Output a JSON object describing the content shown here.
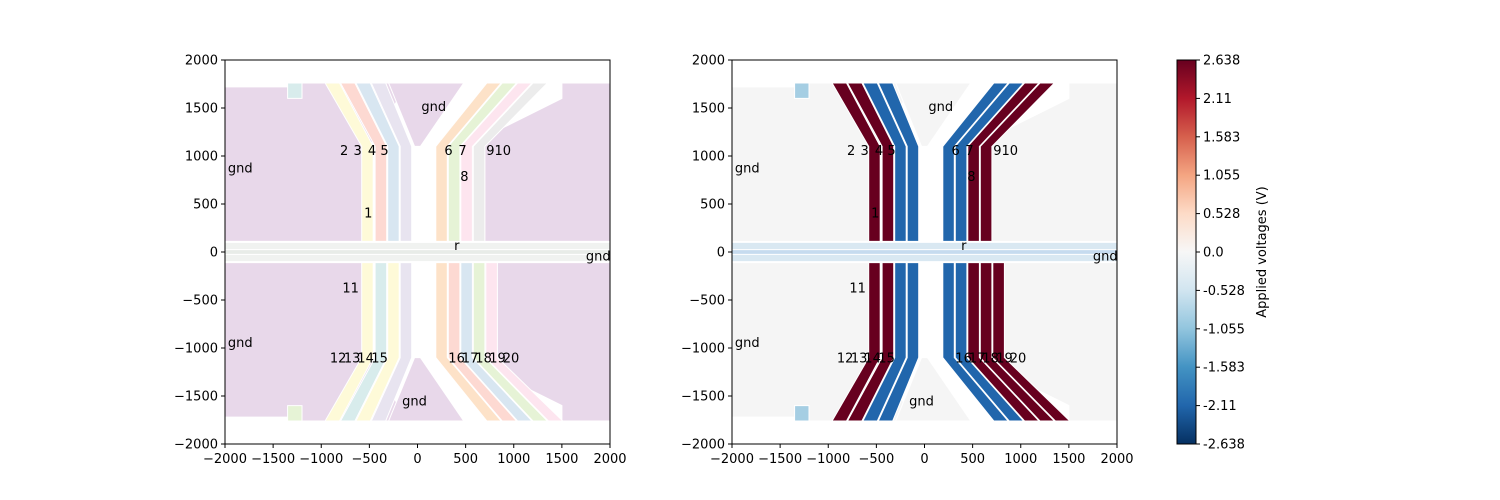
{
  "figure": {
    "panels": [
      "electrode-layout",
      "applied-voltages"
    ]
  },
  "chart_data": [
    {
      "type": "heatmap",
      "xlim": [
        -2000,
        2000
      ],
      "ylim": [
        -2000,
        2000
      ],
      "xticks": [
        -2000,
        -1500,
        -1000,
        -500,
        0,
        500,
        1000,
        1500,
        2000
      ],
      "yticks": [
        -2000,
        -1500,
        -1000,
        -500,
        0,
        500,
        1000,
        1500,
        2000
      ],
      "grid": false,
      "labels": [
        {
          "text": "gnd",
          "x": -1970,
          "y": 830
        },
        {
          "text": "gnd",
          "x": 40,
          "y": 1470
        },
        {
          "text": "gnd",
          "x": 1750,
          "y": -90
        },
        {
          "text": "gnd",
          "x": -1970,
          "y": -990
        },
        {
          "text": "gnd",
          "x": -160,
          "y": -1600
        },
        {
          "text": "1",
          "x": -555,
          "y": 360
        },
        {
          "text": "2",
          "x": -805,
          "y": 1010
        },
        {
          "text": "3",
          "x": -665,
          "y": 1010
        },
        {
          "text": "4",
          "x": -515,
          "y": 1010
        },
        {
          "text": "5",
          "x": -385,
          "y": 1010
        },
        {
          "text": "6",
          "x": 280,
          "y": 1010
        },
        {
          "text": "7",
          "x": 425,
          "y": 1010
        },
        {
          "text": "8",
          "x": 445,
          "y": 740
        },
        {
          "text": "9",
          "x": 715,
          "y": 1010
        },
        {
          "text": "10",
          "x": 800,
          "y": 1010
        },
        {
          "text": "r",
          "x": 380,
          "y": 20
        },
        {
          "text": "11",
          "x": -780,
          "y": -420
        },
        {
          "text": "12",
          "x": -910,
          "y": -1150
        },
        {
          "text": "13",
          "x": -765,
          "y": -1150
        },
        {
          "text": "14",
          "x": -625,
          "y": -1150
        },
        {
          "text": "15",
          "x": -480,
          "y": -1150
        },
        {
          "text": "16",
          "x": 320,
          "y": -1150
        },
        {
          "text": "17",
          "x": 460,
          "y": -1150
        },
        {
          "text": "18",
          "x": 600,
          "y": -1150
        },
        {
          "text": "19",
          "x": 745,
          "y": -1150
        },
        {
          "text": "20",
          "x": 885,
          "y": -1150
        }
      ]
    },
    {
      "type": "heatmap",
      "xlim": [
        -2000,
        2000
      ],
      "ylim": [
        -2000,
        2000
      ],
      "xticks": [
        -2000,
        -1500,
        -1000,
        -500,
        0,
        500,
        1000,
        1500,
        2000
      ],
      "yticks": [
        -2000,
        -1500,
        -1000,
        -500,
        0,
        500,
        1000,
        1500,
        2000
      ],
      "grid": false,
      "colorbar": {
        "label": "Applied voltages (V)",
        "range": [
          -2.638,
          2.638
        ],
        "ticks": [
          "2.638",
          "2.11",
          "1.583",
          "1.055",
          "0.528",
          "0.0",
          "-0.528",
          "-1.055",
          "-1.583",
          "-2.11",
          "-2.638"
        ],
        "colors": {
          "low": "#053061",
          "mid": "#f7f7f7",
          "high": "#67001f"
        }
      },
      "labels": [
        {
          "text": "gnd",
          "x": -1970,
          "y": 830
        },
        {
          "text": "gnd",
          "x": 40,
          "y": 1470
        },
        {
          "text": "gnd",
          "x": 1750,
          "y": -90
        },
        {
          "text": "gnd",
          "x": -1970,
          "y": -990
        },
        {
          "text": "gnd",
          "x": -160,
          "y": -1600
        },
        {
          "text": "1",
          "x": -555,
          "y": 360
        },
        {
          "text": "2",
          "x": -805,
          "y": 1010
        },
        {
          "text": "3",
          "x": -665,
          "y": 1010
        },
        {
          "text": "4",
          "x": -515,
          "y": 1010
        },
        {
          "text": "5",
          "x": -385,
          "y": 1010
        },
        {
          "text": "6",
          "x": 280,
          "y": 1010
        },
        {
          "text": "7",
          "x": 425,
          "y": 1010
        },
        {
          "text": "8",
          "x": 445,
          "y": 740
        },
        {
          "text": "9",
          "x": 715,
          "y": 1010
        },
        {
          "text": "10",
          "x": 800,
          "y": 1010
        },
        {
          "text": "r",
          "x": 380,
          "y": 20
        },
        {
          "text": "11",
          "x": -780,
          "y": -420
        },
        {
          "text": "12",
          "x": -910,
          "y": -1150
        },
        {
          "text": "13",
          "x": -765,
          "y": -1150
        },
        {
          "text": "14",
          "x": -625,
          "y": -1150
        },
        {
          "text": "15",
          "x": -480,
          "y": -1150
        },
        {
          "text": "16",
          "x": 320,
          "y": -1150
        },
        {
          "text": "17",
          "x": 460,
          "y": -1150
        },
        {
          "text": "18",
          "x": 600,
          "y": -1150
        },
        {
          "text": "19",
          "x": 745,
          "y": -1150
        },
        {
          "text": "20",
          "x": 885,
          "y": -1150
        }
      ]
    }
  ],
  "electrodes": {
    "gnd_color_left": "#e8d8ea",
    "gnd_color_right": "#f5f5f5",
    "rail_color_left": "#f0f2f0",
    "rail_color_right": "#d9e8f2",
    "top_left": [
      {
        "id": "2",
        "voltage": 2.638,
        "color": "#fefad8"
      },
      {
        "id": "3",
        "voltage": 2.638,
        "color": "#fdd9d2"
      },
      {
        "id": "4",
        "voltage": -2.11,
        "color": "#d8e6f1"
      },
      {
        "id": "5",
        "voltage": -2.11,
        "color": "#e8e4f0"
      }
    ],
    "top_right": [
      {
        "id": "6",
        "voltage": -2.11,
        "color": "#fde2c8"
      },
      {
        "id": "7",
        "voltage": -2.11,
        "color": "#e6f3d6"
      },
      {
        "id": "9",
        "voltage": 2.638,
        "color": "#fde5ef"
      },
      {
        "id": "10",
        "voltage": 2.638,
        "color": "#ececec"
      }
    ],
    "bottom_left": [
      {
        "id": "12",
        "voltage": 2.638,
        "color": "#fefad8"
      },
      {
        "id": "13",
        "voltage": 2.638,
        "color": "#d8ecec"
      },
      {
        "id": "14",
        "voltage": -2.11,
        "color": "#fefad8"
      },
      {
        "id": "15",
        "voltage": -2.11,
        "color": "#e8e4f0"
      }
    ],
    "bottom_right": [
      {
        "id": "16",
        "voltage": -2.11,
        "color": "#fde2c8"
      },
      {
        "id": "17",
        "voltage": -2.11,
        "color": "#fdd9d2"
      },
      {
        "id": "18",
        "voltage": 2.638,
        "color": "#d8e6f1"
      },
      {
        "id": "19",
        "voltage": 2.638,
        "color": "#e6f3d6"
      },
      {
        "id": "20",
        "voltage": 2.638,
        "color": "#fde5ef"
      }
    ],
    "corner_pads": [
      {
        "id": "tl",
        "voltage": -0.6,
        "color": "#d8ecec"
      },
      {
        "id": "bl",
        "voltage": -0.6,
        "color": "#e6f3d6"
      }
    ]
  }
}
